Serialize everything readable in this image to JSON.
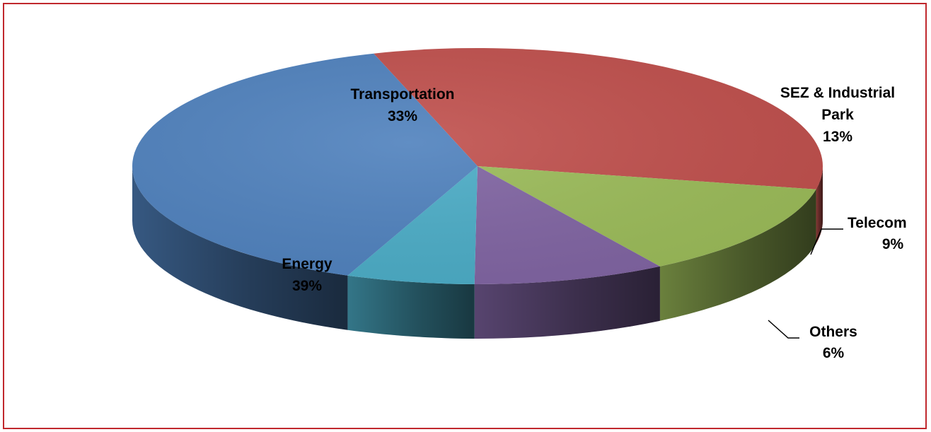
{
  "chart_data": {
    "type": "pie",
    "style": "3d",
    "title": "",
    "slices": [
      {
        "label": "Transportation",
        "value": 33,
        "value_label": "33%",
        "color": "#c0504d"
      },
      {
        "label": "SEZ & Industrial Park",
        "label_lines": [
          "SEZ & Industrial",
          "Park"
        ],
        "value": 13,
        "value_label": "13%",
        "color": "#9bbb59"
      },
      {
        "label": "Telecom",
        "value": 9,
        "value_label": "9%",
        "color": "#8064a2"
      },
      {
        "label": "Others",
        "value": 6,
        "value_label": "6%",
        "color": "#4bacc6"
      },
      {
        "label": "Energy",
        "value": 39,
        "value_label": "39%",
        "color": "#4f81bd"
      }
    ],
    "legend": "none",
    "border_color": "#c0282d"
  }
}
